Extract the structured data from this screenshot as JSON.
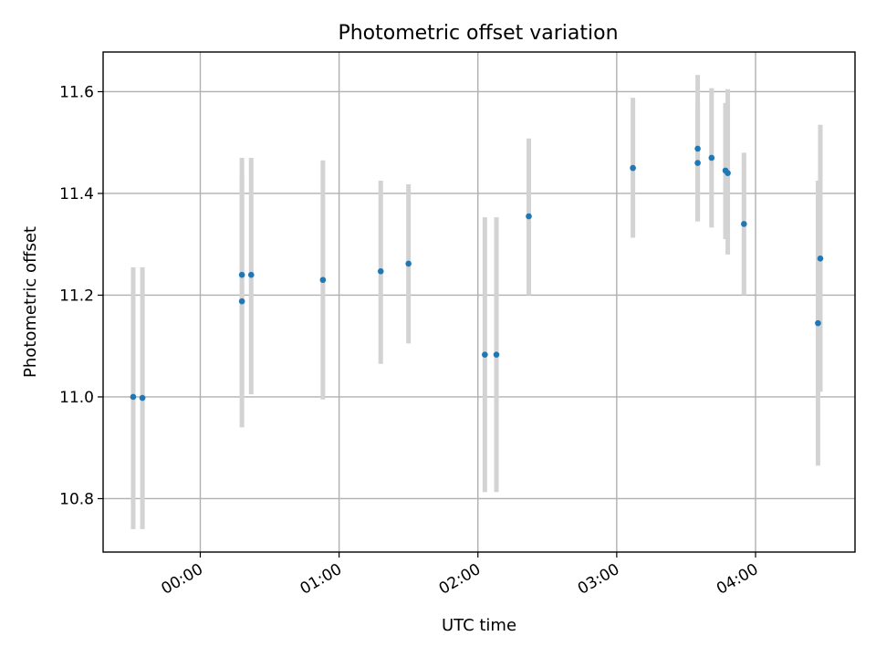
{
  "chart_data": {
    "type": "scatter",
    "title": "Photometric offset variation",
    "xlabel": "UTC time",
    "ylabel": "Photometric offset",
    "grid": true,
    "xlim_minutes": [
      -42,
      283
    ],
    "ylim": [
      10.695,
      11.678
    ],
    "x_ticks": [
      {
        "label": "00:00",
        "minutes": 0
      },
      {
        "label": "01:00",
        "minutes": 60
      },
      {
        "label": "02:00",
        "minutes": 120
      },
      {
        "label": "03:00",
        "minutes": 180
      },
      {
        "label": "04:00",
        "minutes": 240
      }
    ],
    "y_ticks": [
      {
        "label": "10.8",
        "value": 10.8
      },
      {
        "label": "11.0",
        "value": 11.0
      },
      {
        "label": "11.2",
        "value": 11.2
      },
      {
        "label": "11.4",
        "value": 11.4
      },
      {
        "label": "11.6",
        "value": 11.6
      }
    ],
    "colors": {
      "point": "#1f77b4",
      "errorbar": "#d3d3d3"
    },
    "points": [
      {
        "time": "23:31",
        "y": 11.0,
        "ylo": 10.74,
        "yhi": 11.255
      },
      {
        "time": "23:35",
        "y": 10.998,
        "ylo": 10.74,
        "yhi": 11.255
      },
      {
        "time": "00:18",
        "y": 11.188,
        "ylo": 10.94,
        "yhi": 11.435
      },
      {
        "time": "00:18",
        "y": 11.24,
        "ylo": 11.005,
        "yhi": 11.47
      },
      {
        "time": "00:22",
        "y": 11.24,
        "ylo": 11.005,
        "yhi": 11.47
      },
      {
        "time": "00:53",
        "y": 11.23,
        "ylo": 10.995,
        "yhi": 11.465
      },
      {
        "time": "01:18",
        "y": 11.247,
        "ylo": 11.065,
        "yhi": 11.425
      },
      {
        "time": "01:30",
        "y": 11.262,
        "ylo": 11.105,
        "yhi": 11.418
      },
      {
        "time": "02:03",
        "y": 11.083,
        "ylo": 10.813,
        "yhi": 11.353
      },
      {
        "time": "02:08",
        "y": 11.083,
        "ylo": 10.813,
        "yhi": 11.353
      },
      {
        "time": "02:22",
        "y": 11.355,
        "ylo": 11.2,
        "yhi": 11.508
      },
      {
        "time": "03:07",
        "y": 11.45,
        "ylo": 11.313,
        "yhi": 11.588
      },
      {
        "time": "03:35",
        "y": 11.46,
        "ylo": 11.345,
        "yhi": 11.578
      },
      {
        "time": "03:35",
        "y": 11.488,
        "ylo": 11.345,
        "yhi": 11.633
      },
      {
        "time": "03:41",
        "y": 11.47,
        "ylo": 11.333,
        "yhi": 11.607
      },
      {
        "time": "03:47",
        "y": 11.445,
        "ylo": 11.31,
        "yhi": 11.578
      },
      {
        "time": "03:48",
        "y": 11.44,
        "ylo": 11.28,
        "yhi": 11.605
      },
      {
        "time": "03:55",
        "y": 11.34,
        "ylo": 11.2,
        "yhi": 11.48
      },
      {
        "time": "04:27",
        "y": 11.145,
        "ylo": 10.865,
        "yhi": 11.425
      },
      {
        "time": "04:28",
        "y": 11.272,
        "ylo": 11.01,
        "yhi": 11.535
      }
    ]
  }
}
